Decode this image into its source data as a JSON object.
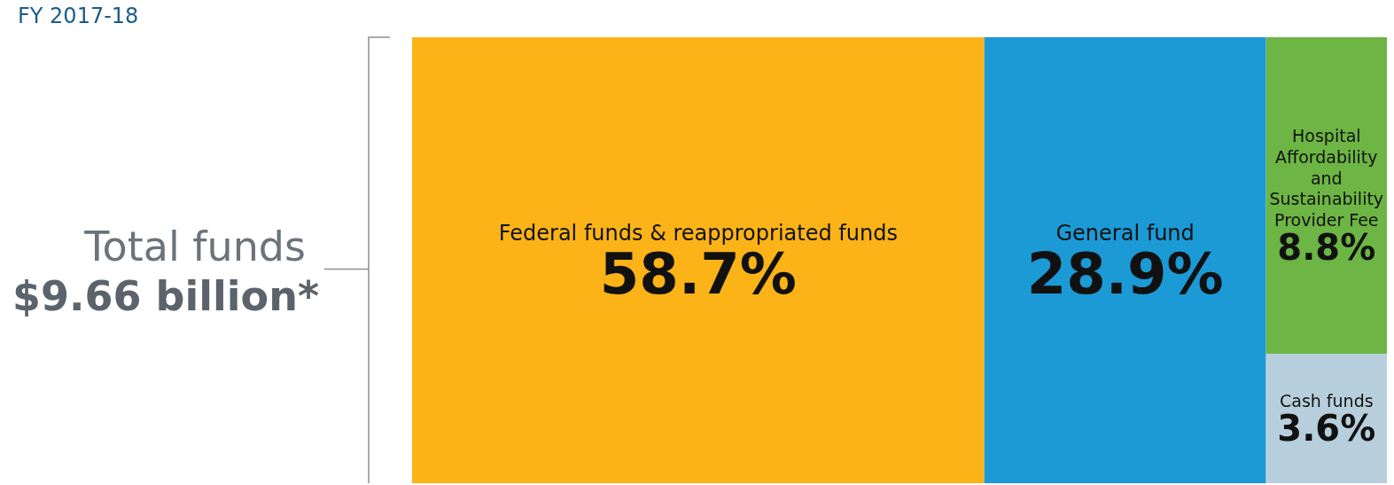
{
  "chart_data": {
    "type": "other",
    "title": "FY 2017-18",
    "categories": [
      "Federal funds & reappropriated funds",
      "General fund",
      "Hospital Affordability and Sustainability Provider Fee",
      "Cash funds"
    ],
    "values": [
      58.7,
      28.9,
      8.8,
      3.6
    ],
    "value_labels": [
      "58.7%",
      "28.9%",
      "8.8%",
      "3.6%"
    ],
    "colors": [
      "#fbb317",
      "#1b9ad6",
      "#6db544",
      "#b7cfdc"
    ],
    "annotations": [
      "Total funds",
      "$9.66 billion*"
    ]
  }
}
